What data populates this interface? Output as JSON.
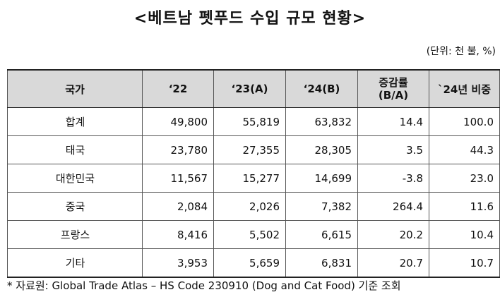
{
  "title": "<베트남 펫푸드 수입 규모 현황>",
  "unit": "(단위: 천 불, %)",
  "table": {
    "headers": {
      "country": "국가",
      "y22": "‘22",
      "y23": "‘23(A)",
      "y24": "‘24(B)",
      "rate_line1": "증감률",
      "rate_line2": "(B/A)",
      "share": "`24년 비중"
    },
    "rows": [
      {
        "country": "합계",
        "y22": "49,800",
        "y23": "55,819",
        "y24": "63,832",
        "rate": "14.4",
        "share": "100.0"
      },
      {
        "country": "태국",
        "y22": "23,780",
        "y23": "27,355",
        "y24": "28,305",
        "rate": "3.5",
        "share": "44.3"
      },
      {
        "country": "대한민국",
        "y22": "11,567",
        "y23": "15,277",
        "y24": "14,699",
        "rate": "-3.8",
        "share": "23.0"
      },
      {
        "country": "중국",
        "y22": "2,084",
        "y23": "2,026",
        "y24": "7,382",
        "rate": "264.4",
        "share": "11.6"
      },
      {
        "country": "프랑스",
        "y22": "8,416",
        "y23": "5,502",
        "y24": "6,615",
        "rate": "20.2",
        "share": "10.4"
      },
      {
        "country": "기타",
        "y22": "3,953",
        "y23": "5,659",
        "y24": "6,831",
        "rate": "20.7",
        "share": "10.7"
      }
    ]
  },
  "note": "* 자료원: Global Trade Atlas – HS Code 230910 (Dog and Cat Food) 기준 조회"
}
